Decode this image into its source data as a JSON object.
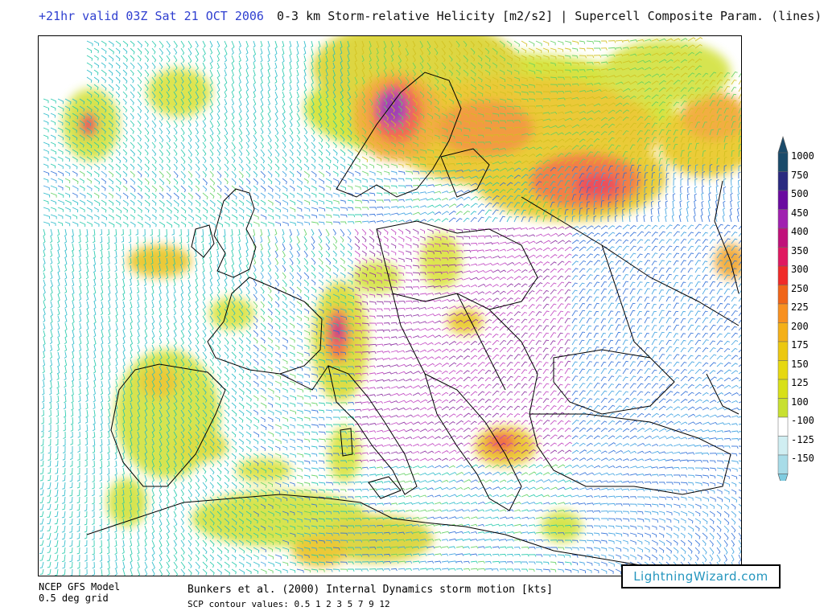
{
  "header": {
    "valid_time": "+21hr valid 03Z Sat 21 OCT 2006",
    "product": "0-3 km Storm-relative Helicity [m2/s2] | Supercell Composite Param. (lines)"
  },
  "footer": {
    "model": "NCEP GFS Model",
    "grid": "0.5 deg grid",
    "storm_motion": "Bunkers et al. (2000) Internal Dynamics storm motion [kts]",
    "scp_contours": "SCP contour values: 0.5 1 2 3 5 7 9 12"
  },
  "brand": "LightningWizard.com",
  "colorbar": {
    "levels": [
      {
        "label": "1000",
        "color": "#1a4a6a"
      },
      {
        "label": "750",
        "color": "#2a2a80"
      },
      {
        "label": "500",
        "color": "#6a0aa0"
      },
      {
        "label": "450",
        "color": "#a020b0"
      },
      {
        "label": "400",
        "color": "#c0107a"
      },
      {
        "label": "350",
        "color": "#e01860"
      },
      {
        "label": "300",
        "color": "#f02a28"
      },
      {
        "label": "250",
        "color": "#f06418"
      },
      {
        "label": "225",
        "color": "#f89020"
      },
      {
        "label": "200",
        "color": "#f4b018"
      },
      {
        "label": "175",
        "color": "#ecc810"
      },
      {
        "label": "150",
        "color": "#e6d810"
      },
      {
        "label": "125",
        "color": "#d8e018"
      },
      {
        "label": "100",
        "color": "#c8e030"
      },
      {
        "label": "-100",
        "color": "#ffffff"
      },
      {
        "label": "-125",
        "color": "#d0eef2"
      },
      {
        "label": "-150",
        "color": "#a8dce8"
      }
    ],
    "top_cap_color": "#1a4a6a",
    "bottom_cap_color": "#80cce0"
  },
  "colors": {
    "barb_colors": [
      "#22b8c8",
      "#3aa0e0",
      "#2e6ed8",
      "#1ec8a8",
      "#60d060",
      "#9ad040",
      "#d0c020",
      "#e09020",
      "#c040c0",
      "#8a2aa0"
    ],
    "coastline": "#000000"
  }
}
